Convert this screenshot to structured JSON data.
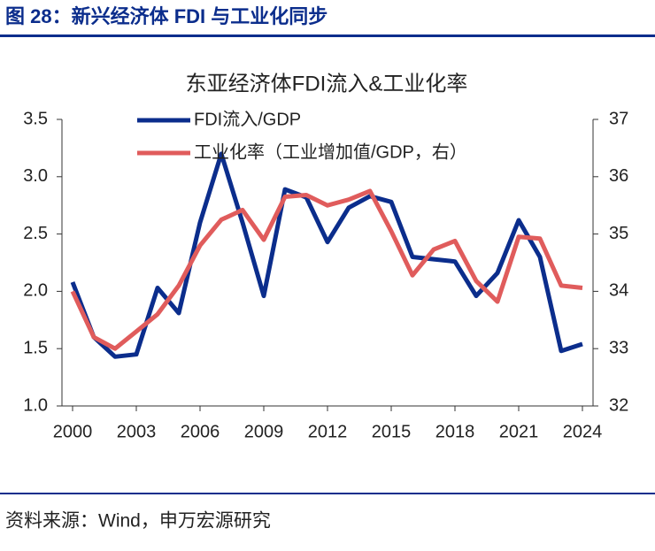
{
  "header": {
    "title": "图 28：新兴经济体 FDI 与工业化同步"
  },
  "chart_data": {
    "type": "line",
    "title": "东亚经济体FDI流入&工业化率",
    "x": [
      2000,
      2001,
      2002,
      2003,
      2004,
      2005,
      2006,
      2007,
      2008,
      2009,
      2010,
      2011,
      2012,
      2013,
      2014,
      2015,
      2016,
      2017,
      2018,
      2019,
      2020,
      2021,
      2022,
      2023,
      2024
    ],
    "xlim": [
      1999.5,
      2024.5
    ],
    "xticks": [
      2000,
      2003,
      2006,
      2009,
      2012,
      2015,
      2018,
      2021,
      2024
    ],
    "ylim": [
      1,
      3.5
    ],
    "yticks": [
      {
        "value": 1,
        "label": "1.0"
      },
      1.5,
      {
        "value": 2,
        "label": "2.0"
      },
      2.5,
      {
        "value": 3,
        "label": "3.0"
      },
      3.5
    ],
    "y2lim": [
      32,
      37
    ],
    "y2ticks": [
      32,
      33,
      34,
      35,
      36,
      37
    ],
    "legend": "upper left",
    "series": [
      {
        "name": "FDI流入/GDP",
        "color": "#0b2d8c",
        "axis": "y",
        "values": [
          2.08,
          1.6,
          1.43,
          1.45,
          2.03,
          1.81,
          2.6,
          3.2,
          2.6,
          1.96,
          2.89,
          2.82,
          2.43,
          2.73,
          2.83,
          2.78,
          2.3,
          2.28,
          2.26,
          1.96,
          2.16,
          2.62,
          2.3,
          1.48,
          1.54
        ]
      },
      {
        "name": "工业化率（工业增加值/GDP，右）",
        "color": "#e05c5c",
        "axis": "y2",
        "values": [
          34.0,
          33.2,
          33.0,
          33.3,
          33.6,
          34.1,
          34.8,
          35.25,
          35.42,
          34.9,
          35.65,
          35.68,
          35.5,
          35.6,
          35.75,
          35.05,
          34.28,
          34.73,
          34.88,
          34.18,
          33.82,
          34.95,
          34.92,
          34.1,
          34.06
        ]
      }
    ]
  },
  "footer": {
    "source": "资料来源：Wind，申万宏源研究"
  }
}
